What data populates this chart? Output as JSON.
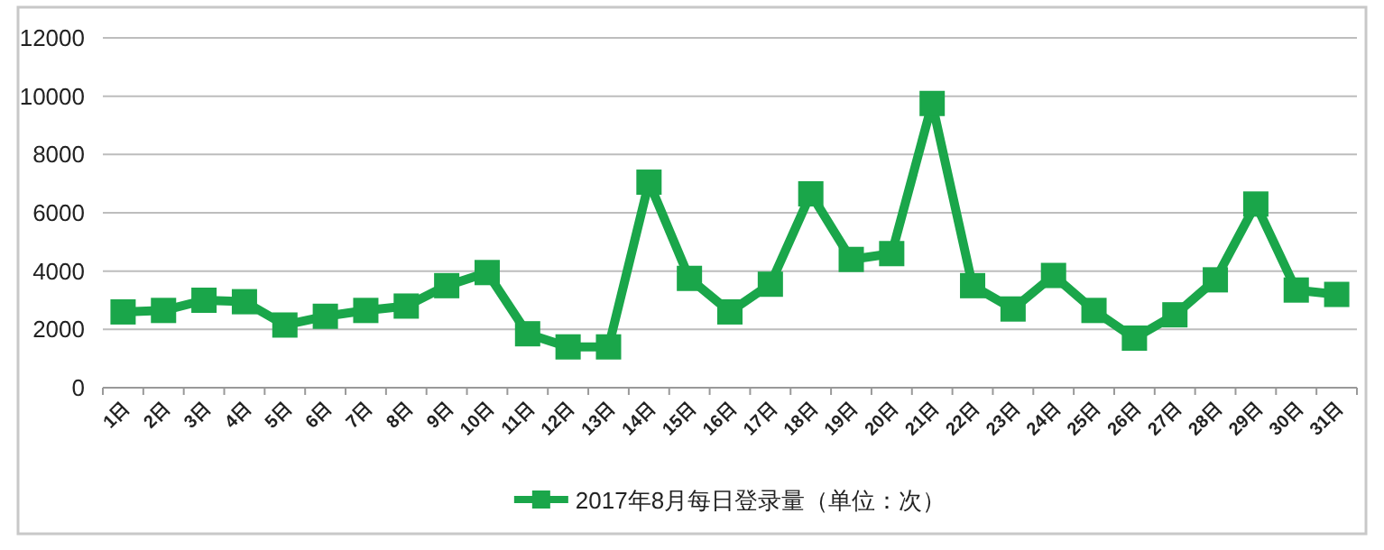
{
  "chart_data": {
    "type": "line",
    "categories": [
      "1日",
      "2日",
      "3日",
      "4日",
      "5日",
      "6日",
      "7日",
      "8日",
      "9日",
      "10日",
      "11日",
      "12日",
      "13日",
      "14日",
      "15日",
      "16日",
      "17日",
      "18日",
      "19日",
      "20日",
      "21日",
      "22日",
      "23日",
      "24日",
      "25日",
      "26日",
      "27日",
      "28日",
      "29日",
      "30日",
      "31日"
    ],
    "series": [
      {
        "name": "2017年8月每日登录量（单位：次）",
        "color": "#1aa64a",
        "values": [
          2600,
          2650,
          3000,
          2950,
          2150,
          2450,
          2650,
          2800,
          3500,
          3950,
          1850,
          1400,
          1400,
          7050,
          3750,
          2600,
          3550,
          6650,
          4400,
          4600,
          9750,
          3500,
          2700,
          3850,
          2650,
          1700,
          2500,
          3700,
          6300,
          3350,
          3200
        ]
      }
    ],
    "ylim": [
      0,
      12000
    ],
    "yticks": [
      0,
      2000,
      4000,
      6000,
      8000,
      10000,
      12000
    ],
    "grid": "y",
    "legend": "bottom",
    "marker": "square",
    "line_style": "solid"
  }
}
